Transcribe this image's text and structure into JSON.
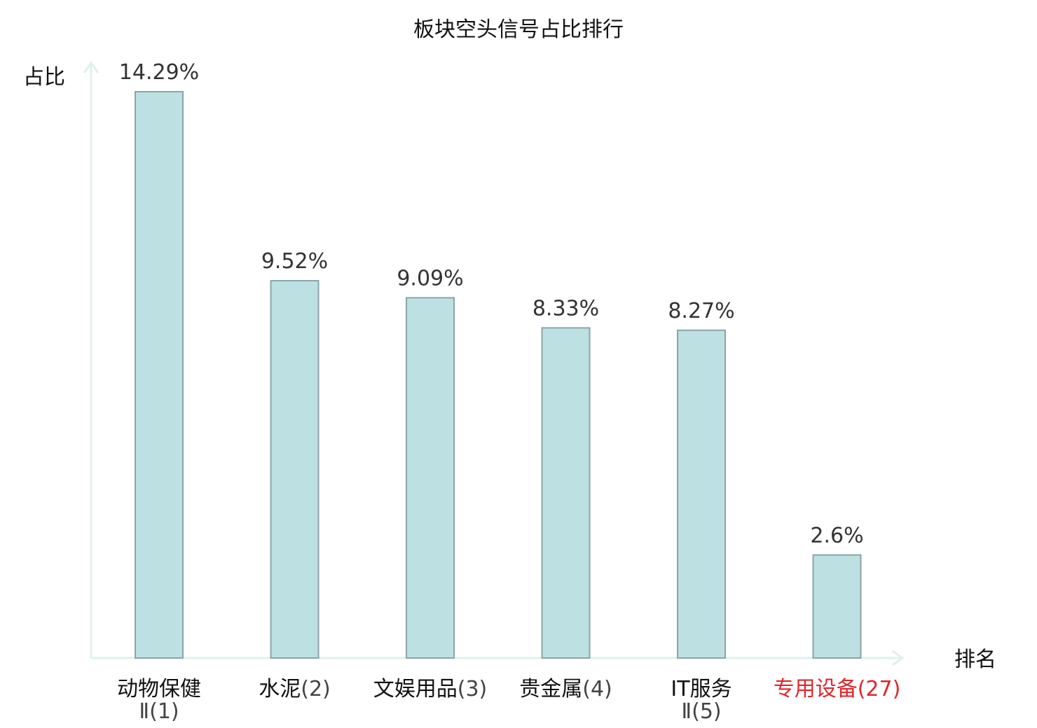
{
  "chart_data": {
    "type": "bar",
    "title": "板块空头信号占比排行",
    "xlabel": "排名",
    "ylabel": "占比",
    "ylim": [
      0,
      15.0
    ],
    "grid": false,
    "categories": [
      {
        "name_lines": [
          "动物保健",
          "Ⅱ"
        ],
        "rank": "(1)",
        "highlight": false
      },
      {
        "name_lines": [
          "水泥"
        ],
        "rank": "(2)",
        "highlight": false
      },
      {
        "name_lines": [
          "文娱用品"
        ],
        "rank": "(3)",
        "highlight": false
      },
      {
        "name_lines": [
          "贵金属"
        ],
        "rank": "(4)",
        "highlight": false
      },
      {
        "name_lines": [
          "IT服务",
          "Ⅱ"
        ],
        "rank": "(5)",
        "highlight": false
      },
      {
        "name_lines": [
          "专用设备"
        ],
        "rank": "(27)",
        "highlight": true
      }
    ],
    "values": [
      14.29,
      9.52,
      9.09,
      8.33,
      8.27,
      2.6
    ],
    "value_labels": [
      "14.29%",
      "9.52%",
      "9.09%",
      "8.33%",
      "8.27%",
      "2.6%"
    ],
    "colors": {
      "bar_fill": "#bde0e3",
      "bar_stroke": "#8aa5a8",
      "axis": "#dff0ee",
      "highlight": "#e0262b"
    }
  }
}
